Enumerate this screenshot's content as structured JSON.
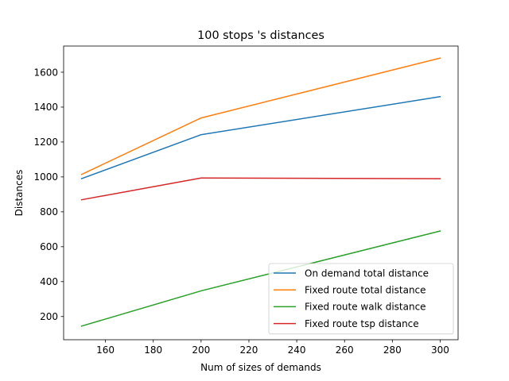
{
  "chart_data": {
    "type": "line",
    "title": "100 stops 's distances",
    "xlabel": "Num of sizes of demands",
    "ylabel": "Distances",
    "x": [
      150,
      200,
      300
    ],
    "xlim": [
      142.5,
      307.5
    ],
    "ylim": [
      67,
      1750
    ],
    "xticks": [
      160,
      180,
      200,
      220,
      240,
      260,
      280,
      300
    ],
    "yticks": [
      200,
      400,
      600,
      800,
      1000,
      1200,
      1400,
      1600
    ],
    "grid": false,
    "legend_position": "lower-right",
    "series": [
      {
        "name": "On demand total distance",
        "color": "#1f77b4",
        "values": [
          990,
          1242,
          1460
        ]
      },
      {
        "name": "Fixed route total distance",
        "color": "#ff7f0e",
        "values": [
          1014,
          1338,
          1681
        ]
      },
      {
        "name": "Fixed route walk distance",
        "color": "#2ca02c",
        "values": [
          145,
          347,
          690
        ]
      },
      {
        "name": "Fixed route tsp distance",
        "color": "#d62728",
        "values": [
          869,
          994,
          990
        ]
      }
    ]
  }
}
